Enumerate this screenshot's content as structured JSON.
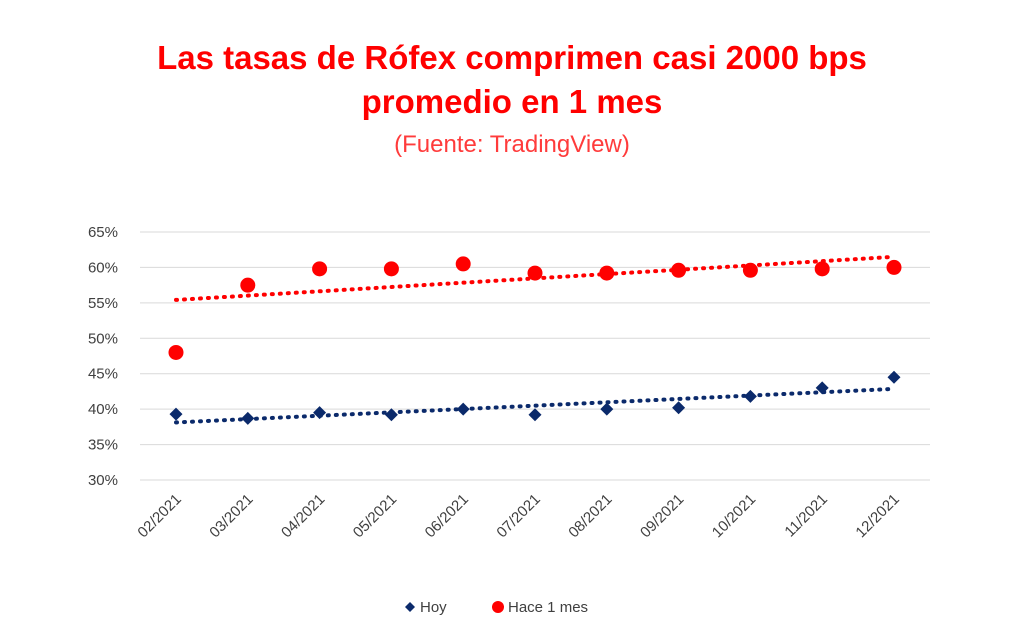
{
  "chart_data": {
    "type": "scatter",
    "title_line1": "Las tasas de Rófex comprimen casi 2000 bps",
    "title_line2": "promedio en 1 mes",
    "subtitle": "(Fuente: TradingView)",
    "xlabel": "",
    "ylabel": "",
    "categories": [
      "02/2021",
      "03/2021",
      "04/2021",
      "05/2021",
      "06/2021",
      "07/2021",
      "08/2021",
      "09/2021",
      "10/2021",
      "11/2021",
      "12/2021"
    ],
    "y_ticks": [
      "65%",
      "60%",
      "55%",
      "50%",
      "45%",
      "40%",
      "35%",
      "30%"
    ],
    "ylim": [
      30,
      65
    ],
    "y_unit": "%",
    "grid": true,
    "legend_position": "bottom-center",
    "trendline": "linear, dotted",
    "series": [
      {
        "name": "Hoy",
        "marker": "diamond",
        "color": "#0b2a6b",
        "values": [
          39.3,
          38.7,
          39.5,
          39.2,
          40.0,
          39.2,
          40.0,
          40.2,
          41.8,
          43.0,
          44.5
        ]
      },
      {
        "name": "Hace 1 mes",
        "marker": "circle",
        "color": "#ff0000",
        "values": [
          48.0,
          57.5,
          59.8,
          59.8,
          60.5,
          59.2,
          59.2,
          59.6,
          59.6,
          59.8,
          60.0
        ]
      }
    ]
  }
}
